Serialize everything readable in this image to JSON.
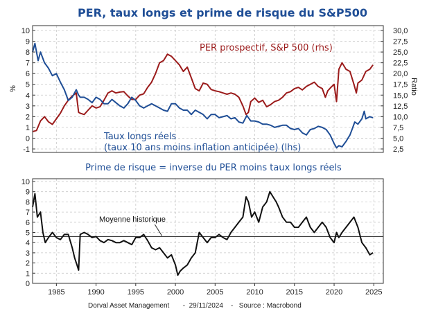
{
  "title": "PER, taux longs et prime de risque du S&P500",
  "footer": "Dorval Asset Management       -  29/11/2024    -   Source : Macrobond",
  "chart_data": [
    {
      "type": "line",
      "title": "PER, taux longs et prime de risque du S&P500",
      "ylabel": "%",
      "ylabel_right": "Ratio",
      "ylim": [
        -1,
        10
      ],
      "ylim_right": [
        2.5,
        30
      ],
      "yticks": [
        "-1",
        "0",
        "1",
        "2",
        "3",
        "4",
        "5",
        "6",
        "7",
        "8",
        "9",
        "10"
      ],
      "yticks_right": [
        "2,5",
        "5,0",
        "7,5",
        "10,0",
        "12,5",
        "15,0",
        "17,5",
        "20,0",
        "22,5",
        "25,0",
        "27,5",
        "30,0"
      ],
      "grid": true,
      "annotations": [
        "PER prospectif, S&P 500 (rhs)",
        "Taux longs réels",
        "(taux 10 ans moins inflation anticipée) (lhs)"
      ],
      "series": [
        {
          "name": "PER prospectif, S&P 500 (rhs)",
          "axis": "right",
          "color": "#9b1b1b",
          "x": [
            1982,
            1982.5,
            1983,
            1983.5,
            1984,
            1984.5,
            1985,
            1985.5,
            1986,
            1986.5,
            1987,
            1987.5,
            1987.8,
            1988,
            1988.5,
            1989,
            1989.5,
            1990,
            1990.5,
            1991,
            1991.5,
            1992,
            1992.5,
            1993,
            1993.5,
            1994,
            1994.5,
            1995,
            1995.5,
            1996,
            1996.5,
            1997,
            1997.5,
            1998,
            1998.5,
            1999,
            1999.5,
            2000,
            2000.5,
            2001,
            2001.5,
            2002,
            2002.5,
            2003,
            2003.5,
            2004,
            2004.5,
            2005,
            2005.5,
            2006,
            2006.5,
            2007,
            2007.5,
            2008,
            2008.5,
            2008.9,
            2009.2,
            2009.5,
            2010,
            2010.5,
            2011,
            2011.5,
            2012,
            2012.5,
            2013,
            2013.5,
            2014,
            2014.5,
            2015,
            2015.5,
            2016,
            2016.5,
            2017,
            2017.5,
            2018,
            2018.5,
            2018.9,
            2019.2,
            2019.6,
            2020,
            2020.3,
            2020.6,
            2021,
            2021.5,
            2022,
            2022.5,
            2022.8,
            2023,
            2023.5,
            2024,
            2024.5,
            2024.9
          ],
          "values": [
            6.5,
            6.8,
            9.0,
            10.0,
            8.8,
            8.2,
            9.5,
            10.8,
            12.5,
            13.8,
            14.8,
            15.5,
            11.0,
            10.8,
            10.5,
            11.5,
            12.5,
            12.0,
            12.3,
            13.8,
            15.5,
            16.0,
            15.5,
            15.7,
            15.8,
            14.8,
            14.0,
            14.0,
            15.0,
            15.3,
            16.8,
            18.0,
            20.0,
            22.5,
            23.0,
            24.5,
            24.0,
            23.0,
            22.0,
            20.5,
            21.5,
            19.0,
            16.5,
            16.0,
            17.8,
            17.5,
            16.3,
            16.0,
            15.8,
            15.5,
            15.2,
            15.5,
            15.2,
            14.5,
            12.5,
            10.5,
            11.0,
            13.5,
            14.3,
            13.3,
            13.8,
            12.3,
            12.8,
            13.5,
            13.8,
            14.5,
            15.5,
            15.8,
            16.5,
            16.8,
            16.2,
            17.0,
            17.5,
            18.0,
            17.0,
            16.5,
            14.5,
            16.0,
            16.8,
            17.5,
            13.5,
            21.0,
            22.5,
            21.0,
            20.5,
            17.5,
            15.5,
            17.8,
            18.5,
            20.5,
            21.0,
            22.0
          ]
        },
        {
          "name": "Taux longs réels (taux 10 ans moins inflation anticipée) (lhs)",
          "axis": "left",
          "color": "#1f4e96",
          "x": [
            1982,
            1982.3,
            1982.7,
            1983,
            1983.5,
            1984,
            1984.5,
            1985,
            1985.5,
            1986,
            1986.5,
            1987,
            1987.5,
            1987.8,
            1988,
            1988.5,
            1989,
            1989.5,
            1990,
            1990.5,
            1991,
            1991.5,
            1992,
            1992.5,
            1993,
            1993.5,
            1994,
            1994.5,
            1995,
            1995.5,
            1996,
            1996.5,
            1997,
            1997.5,
            1998,
            1998.5,
            1999,
            1999.5,
            2000,
            2000.5,
            2001,
            2001.5,
            2002,
            2002.5,
            2003,
            2003.5,
            2004,
            2004.5,
            2005,
            2005.5,
            2006,
            2006.5,
            2007,
            2007.5,
            2008,
            2008.5,
            2009,
            2009.5,
            2010,
            2010.5,
            2011,
            2011.5,
            2012,
            2012.5,
            2013,
            2013.5,
            2014,
            2014.5,
            2015,
            2015.5,
            2016,
            2016.5,
            2017,
            2017.5,
            2018,
            2018.5,
            2019,
            2019.5,
            2020,
            2020.3,
            2020.6,
            2021,
            2021.5,
            2022,
            2022.3,
            2022.6,
            2023,
            2023.5,
            2023.8,
            2024,
            2024.5,
            2024.9
          ],
          "values": [
            8.0,
            8.8,
            7.2,
            8.0,
            7.0,
            6.5,
            5.8,
            6.0,
            5.2,
            4.5,
            3.5,
            3.8,
            4.5,
            4.0,
            3.8,
            3.8,
            3.6,
            3.3,
            3.8,
            3.6,
            3.2,
            3.2,
            3.6,
            3.3,
            3.0,
            2.8,
            3.2,
            3.8,
            3.5,
            3.0,
            2.8,
            3.0,
            3.2,
            3.0,
            2.8,
            2.6,
            2.5,
            3.2,
            3.2,
            2.8,
            2.6,
            2.6,
            2.2,
            2.6,
            2.4,
            2.2,
            1.8,
            2.2,
            2.2,
            1.9,
            2.0,
            2.1,
            1.8,
            1.9,
            1.5,
            1.4,
            2.1,
            1.6,
            1.6,
            1.5,
            1.3,
            1.3,
            1.2,
            1.0,
            1.1,
            1.2,
            1.2,
            0.9,
            0.8,
            0.9,
            0.5,
            0.3,
            0.8,
            0.9,
            1.1,
            1.0,
            0.8,
            0.3,
            -0.5,
            -0.9,
            -0.7,
            -0.8,
            -0.3,
            0.3,
            0.9,
            1.5,
            1.3,
            1.8,
            2.5,
            1.8,
            2.0,
            1.9
          ]
        }
      ]
    },
    {
      "type": "line",
      "title": "Prime de risque = inverse du PER moins taux longs réels",
      "ylim": [
        0,
        10
      ],
      "yticks": [
        "0",
        "1",
        "2",
        "3",
        "4",
        "5",
        "6",
        "7",
        "8",
        "9",
        "10"
      ],
      "xticks": [
        "1985",
        "1990",
        "1995",
        "2000",
        "2005",
        "2010",
        "2015",
        "2020",
        "2025"
      ],
      "xlim": [
        1982,
        2026.2
      ],
      "grid": true,
      "reference_line": {
        "label": "Moyenne historique",
        "value": 4.6
      },
      "series": [
        {
          "name": "Prime de risque",
          "color": "#111111",
          "x": [
            1982,
            1982.3,
            1982.6,
            1983,
            1983.3,
            1983.6,
            1984,
            1984.5,
            1985,
            1985.5,
            1986,
            1986.5,
            1987,
            1987.3,
            1987.6,
            1987.8,
            1988,
            1988.5,
            1989,
            1989.5,
            1990,
            1990.5,
            1991,
            1991.5,
            1992,
            1992.5,
            1993,
            1993.5,
            1994,
            1994.5,
            1995,
            1995.5,
            1996,
            1996.5,
            1997,
            1997.5,
            1998,
            1998.5,
            1999,
            1999.5,
            2000,
            2000.3,
            2000.6,
            2001,
            2001.5,
            2002,
            2002.5,
            2003,
            2003.5,
            2004,
            2004.5,
            2005,
            2005.5,
            2006,
            2006.5,
            2007,
            2007.5,
            2008,
            2008.5,
            2008.9,
            2009.2,
            2009.6,
            2010,
            2010.5,
            2011,
            2011.5,
            2011.9,
            2012.3,
            2012.7,
            2013,
            2013.5,
            2014,
            2014.5,
            2015,
            2015.5,
            2016,
            2016.5,
            2017,
            2017.5,
            2018,
            2018.5,
            2019,
            2019.5,
            2020,
            2020.3,
            2020.6,
            2021,
            2021.5,
            2022,
            2022.5,
            2023,
            2023.5,
            2024,
            2024.5,
            2024.9
          ],
          "values": [
            7.5,
            8.8,
            6.5,
            7.0,
            5.0,
            4.0,
            4.5,
            5.0,
            4.5,
            4.3,
            4.8,
            4.8,
            3.5,
            2.5,
            1.8,
            1.3,
            4.8,
            5.0,
            4.8,
            4.5,
            4.6,
            4.2,
            4.0,
            4.3,
            4.2,
            4.0,
            4.0,
            4.2,
            4.0,
            3.8,
            4.5,
            4.5,
            4.8,
            4.2,
            3.5,
            3.3,
            3.5,
            3.0,
            2.5,
            2.8,
            1.8,
            0.8,
            1.2,
            1.5,
            1.8,
            2.5,
            3.0,
            5.0,
            4.5,
            4.0,
            4.5,
            4.5,
            4.8,
            4.5,
            4.3,
            5.0,
            5.5,
            6.0,
            6.5,
            8.5,
            8.0,
            6.5,
            7.0,
            6.0,
            7.5,
            8.0,
            9.0,
            8.5,
            8.0,
            7.5,
            6.5,
            6.0,
            6.0,
            5.5,
            5.5,
            6.0,
            6.5,
            5.5,
            5.0,
            5.5,
            6.0,
            5.5,
            4.5,
            4.0,
            5.0,
            4.5,
            5.0,
            5.5,
            6.0,
            6.5,
            5.5,
            4.0,
            3.5,
            2.8,
            3.0
          ]
        }
      ]
    }
  ]
}
